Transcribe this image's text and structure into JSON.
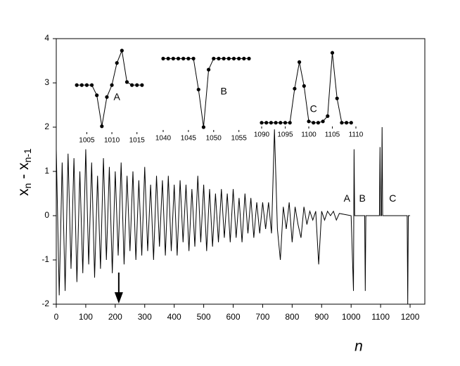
{
  "chart_data": {
    "type": "line",
    "ylabel_parts": [
      "x",
      "n",
      " - x",
      "n-1"
    ],
    "xlabel": "n",
    "xlim": [
      0,
      1250
    ],
    "ylim": [
      -2,
      4
    ],
    "xticks": [
      0,
      100,
      200,
      300,
      400,
      500,
      600,
      700,
      800,
      900,
      1000,
      1100,
      1200
    ],
    "yticks": [
      -2,
      -1,
      0,
      1,
      2,
      3,
      4
    ],
    "color": "#000000",
    "x": [
      0,
      10,
      20,
      30,
      40,
      50,
      60,
      70,
      80,
      90,
      100,
      110,
      120,
      130,
      140,
      150,
      160,
      170,
      180,
      190,
      200,
      210,
      220,
      230,
      240,
      250,
      260,
      270,
      280,
      290,
      300,
      310,
      320,
      330,
      340,
      350,
      360,
      370,
      380,
      390,
      400,
      410,
      420,
      430,
      440,
      450,
      460,
      470,
      480,
      490,
      500,
      510,
      520,
      530,
      540,
      550,
      560,
      570,
      580,
      590,
      600,
      610,
      620,
      630,
      640,
      650,
      660,
      670,
      680,
      690,
      700,
      710,
      720,
      730,
      740,
      750,
      760,
      770,
      780,
      790,
      800,
      810,
      820,
      830,
      840,
      850,
      860,
      870,
      880,
      890,
      900,
      910,
      920,
      930,
      940,
      950,
      960,
      1000,
      1008,
      1010,
      1012,
      1046,
      1048,
      1050,
      1096,
      1098,
      1100,
      1103,
      1105,
      1107,
      1190,
      1192,
      1194,
      1200
    ],
    "values": [
      1.5,
      -1.8,
      1.2,
      -1.7,
      1.4,
      -1.2,
      1.3,
      -1.5,
      1.0,
      -1.3,
      1.5,
      -1.1,
      1.2,
      -1.4,
      0.9,
      -1.2,
      1.3,
      -1.0,
      1.1,
      -1.3,
      1.0,
      -0.9,
      1.2,
      -1.1,
      0.9,
      -0.8,
      1.0,
      -1.0,
      0.8,
      -0.9,
      1.1,
      -0.8,
      0.7,
      -1.0,
      0.9,
      -0.7,
      0.8,
      -0.9,
      0.9,
      -0.8,
      0.7,
      -0.9,
      0.8,
      -0.6,
      0.7,
      -0.8,
      0.6,
      -0.7,
      0.9,
      -0.6,
      0.7,
      -0.8,
      0.6,
      -0.7,
      0.5,
      -0.6,
      0.6,
      -0.5,
      0.5,
      -0.6,
      0.6,
      -0.5,
      0.4,
      -0.6,
      0.5,
      -0.4,
      0.4,
      -0.5,
      0.3,
      -0.4,
      0.3,
      -0.3,
      0.3,
      -0.4,
      1.95,
      -0.3,
      -1.0,
      0.2,
      -0.3,
      0.3,
      -0.6,
      0.2,
      -0.2,
      -0.5,
      0.2,
      -0.2,
      0.1,
      -0.1,
      0.1,
      -1.1,
      0.1,
      -0.1,
      0.1,
      0,
      0.1,
      -0.1,
      0.05,
      0,
      -1.7,
      1.5,
      0,
      0,
      -1.7,
      0,
      0,
      1.55,
      0,
      0,
      2.0,
      0,
      0,
      -2,
      0,
      0
    ],
    "annotations": [
      {
        "text": "A",
        "x": 986,
        "y": 0.38
      },
      {
        "text": "B",
        "x": 1038,
        "y": 0.38
      },
      {
        "text": "C",
        "x": 1141,
        "y": 0.38
      }
    ],
    "arrow_x": 212,
    "insets": [
      {
        "type": "line",
        "label": {
          "text": "A",
          "x": 1011,
          "y": 2.67
        },
        "xlim": [
          1002,
          1017
        ],
        "xticks": [
          1005,
          1010,
          1015
        ],
        "x": [
          1003,
          1004,
          1005,
          1006,
          1007,
          1008,
          1009,
          1010,
          1011,
          1012,
          1013,
          1014,
          1015,
          1016
        ],
        "values": [
          2.95,
          2.95,
          2.95,
          2.95,
          2.72,
          2.02,
          2.68,
          2.95,
          3.45,
          3.73,
          3.02,
          2.95,
          2.95,
          2.95
        ]
      },
      {
        "type": "line",
        "label": {
          "text": "B",
          "x": 1052,
          "y": 2.8
        },
        "xlim": [
          1040,
          1057
        ],
        "xticks": [
          1040,
          1045,
          1050,
          1055
        ],
        "x": [
          1040,
          1041,
          1042,
          1043,
          1044,
          1045,
          1046,
          1047,
          1048,
          1049,
          1050,
          1051,
          1052,
          1053,
          1054,
          1055,
          1056,
          1057
        ],
        "values": [
          3.55,
          3.55,
          3.55,
          3.55,
          3.55,
          3.55,
          3.55,
          2.85,
          2.0,
          3.3,
          3.55,
          3.55,
          3.55,
          3.55,
          3.55,
          3.55,
          3.55,
          3.55
        ]
      },
      {
        "type": "line",
        "label": {
          "text": "C",
          "x": 1101,
          "y": 2.4
        },
        "xlim": [
          1090,
          1110
        ],
        "xticks": [
          1090,
          1095,
          1100,
          1105,
          1110
        ],
        "x": [
          1090,
          1091,
          1092,
          1093,
          1094,
          1095,
          1096,
          1097,
          1098,
          1099,
          1100,
          1101,
          1102,
          1103,
          1104,
          1105,
          1106,
          1107,
          1108,
          1109
        ],
        "values": [
          2.1,
          2.1,
          2.1,
          2.1,
          2.1,
          2.1,
          2.1,
          2.87,
          3.47,
          2.93,
          2.13,
          2.1,
          2.1,
          2.13,
          2.25,
          3.68,
          2.65,
          2.1,
          2.1,
          2.1
        ]
      }
    ]
  }
}
